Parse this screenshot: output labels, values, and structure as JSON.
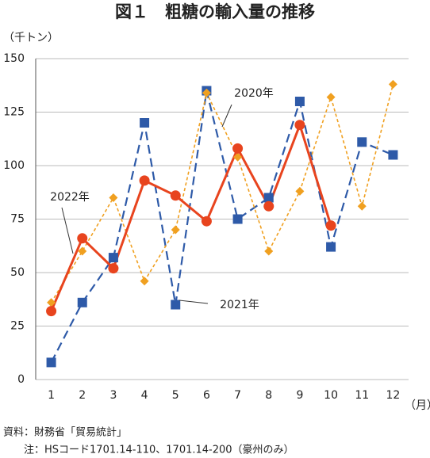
{
  "chart_data": {
    "type": "line",
    "title": "図１　粗糖の輸入量の推移",
    "y_label": "（千トン）",
    "x_label": "（月）",
    "categories": [
      "1",
      "2",
      "3",
      "4",
      "5",
      "6",
      "7",
      "8",
      "9",
      "10",
      "11",
      "12"
    ],
    "series": [
      {
        "name": "2021年",
        "color": "#2e5aa8",
        "marker": "square",
        "values": [
          8,
          36,
          57,
          120,
          35,
          135,
          75,
          85,
          130,
          62,
          111,
          105
        ]
      },
      {
        "name": "2020年",
        "color": "#f0a020",
        "marker": "diamond",
        "values": [
          36,
          60,
          85,
          46,
          70,
          134,
          104,
          60,
          88,
          132,
          81,
          138
        ]
      },
      {
        "name": "2022年",
        "color": "#e8441e",
        "marker": "circle",
        "values": [
          32,
          66,
          52,
          93,
          86,
          74,
          108,
          81,
          119,
          72,
          null,
          null
        ]
      }
    ],
    "ylim": [
      0,
      150
    ],
    "yticks": [
      0,
      25,
      50,
      75,
      100,
      125,
      150
    ],
    "grid": true,
    "notes": [
      "資料：財務省「貿易統計」",
      "注：HSコード1701.14-110、1701.14-200（豪州のみ）"
    ]
  }
}
